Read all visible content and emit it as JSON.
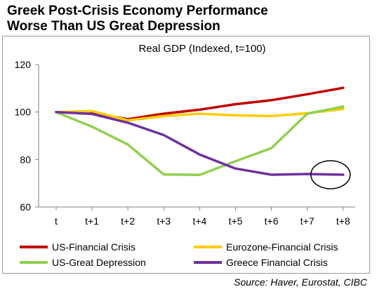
{
  "title_lines": [
    "Greek Post-Crisis Economy Performance",
    "Worse Than US Great Depression"
  ],
  "source": "Source: Haver, Eurostat, CIBC",
  "chart_data": {
    "type": "line",
    "title": "Real GDP (Indexed, t=100)",
    "categories": [
      "t",
      "t+1",
      "t+2",
      "t+3",
      "t+4",
      "t+5",
      "t+6",
      "t+7",
      "t+8"
    ],
    "ylim": [
      60,
      120
    ],
    "yticks": [
      60,
      80,
      100,
      120
    ],
    "grid": false,
    "legend_position": "bottom",
    "series": [
      {
        "name": "US-Financial Crisis",
        "color": "#c00000",
        "values": [
          100,
          99.5,
          97,
          99.3,
          101,
          103.3,
          105,
          107.5,
          110.2
        ]
      },
      {
        "name": "Eurozone-Financial Crisis",
        "color": "#ffcc00",
        "values": [
          100,
          100.4,
          96.5,
          98.3,
          99.3,
          98.6,
          98.3,
          99.5,
          101.3
        ]
      },
      {
        "name": "US-Great Depression",
        "color": "#92d050",
        "values": [
          100,
          93.8,
          86.3,
          73.7,
          73.5,
          79.3,
          84.8,
          99.3,
          102.3
        ]
      },
      {
        "name": "Greece Financial Crisis",
        "color": "#7030a0",
        "values": [
          100,
          99.2,
          95.5,
          90.3,
          82.1,
          76.2,
          73.6,
          73.9,
          73.6
        ]
      }
    ],
    "annotation": {
      "type": "ellipse-highlight",
      "category": "t+8",
      "value": 73.6
    }
  }
}
